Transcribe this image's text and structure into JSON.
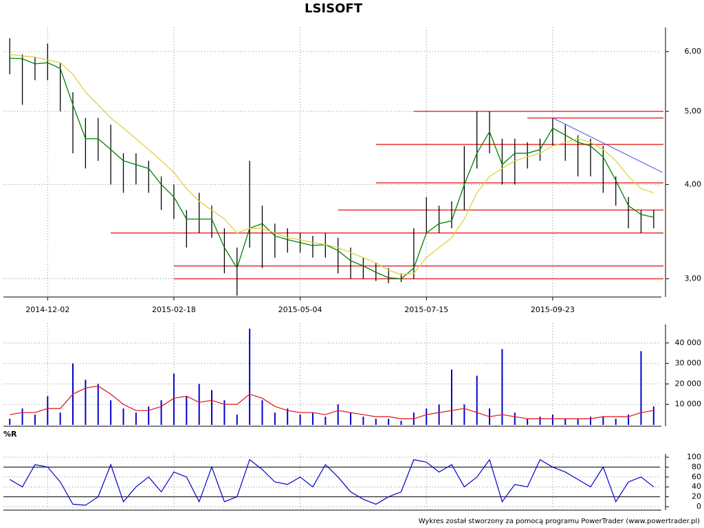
{
  "title": "LSISOFT",
  "footer": "Wykres został stworzony za pomocą programu PowerTrader (www.powertrader.pl)",
  "chart_data": [
    {
      "type": "hilo",
      "log_scale": true,
      "grid": true,
      "color": "#000000",
      "categories": [
        null,
        null,
        null,
        "2014-12-02",
        null,
        null,
        null,
        null,
        null,
        null,
        null,
        null,
        null,
        "2015-02-18",
        null,
        null,
        null,
        null,
        null,
        null,
        null,
        null,
        null,
        "2015-05-04",
        null,
        null,
        null,
        null,
        null,
        null,
        null,
        null,
        null,
        "2015-07-15",
        null,
        null,
        null,
        null,
        null,
        null,
        null,
        null,
        null,
        "2015-09-23",
        null,
        null,
        null,
        null,
        null,
        null,
        null,
        null
      ],
      "high": [
        6.25,
        5.95,
        5.9,
        6.15,
        5.8,
        5.3,
        4.9,
        4.9,
        4.8,
        4.4,
        4.4,
        4.3,
        4.1,
        4.0,
        3.7,
        3.9,
        3.75,
        3.5,
        3.3,
        4.3,
        3.75,
        3.55,
        3.5,
        3.45,
        3.42,
        3.45,
        3.4,
        3.3,
        3.2,
        3.15,
        3.1,
        3.05,
        3.5,
        3.85,
        3.75,
        3.8,
        4.5,
        5.0,
        5.0,
        4.6,
        4.6,
        4.55,
        4.6,
        4.9,
        4.8,
        4.65,
        4.6,
        4.5,
        4.1,
        3.85,
        3.7,
        3.7
      ],
      "low": [
        5.6,
        5.1,
        5.5,
        5.5,
        5.0,
        4.4,
        4.2,
        4.3,
        4.0,
        3.9,
        4.0,
        3.9,
        3.7,
        3.6,
        3.3,
        3.45,
        3.4,
        3.05,
        2.85,
        3.3,
        3.1,
        3.2,
        3.25,
        3.25,
        3.2,
        3.2,
        3.05,
        3.0,
        3.0,
        2.98,
        2.96,
        2.97,
        3.0,
        3.45,
        3.45,
        3.5,
        3.7,
        4.2,
        4.4,
        4.0,
        4.0,
        4.2,
        4.3,
        4.5,
        4.3,
        4.1,
        4.1,
        3.9,
        3.75,
        3.5,
        3.45,
        3.5
      ],
      "lines": [
        {
          "color": "#008000",
          "values": [
            5.88,
            5.87,
            5.78,
            5.8,
            5.7,
            5.1,
            4.6,
            4.6,
            4.45,
            4.3,
            4.25,
            4.2,
            4.0,
            3.85,
            3.6,
            3.6,
            3.6,
            3.3,
            3.1,
            3.5,
            3.55,
            3.42,
            3.38,
            3.35,
            3.32,
            3.33,
            3.27,
            3.17,
            3.12,
            3.06,
            3.01,
            3.0,
            3.1,
            3.45,
            3.55,
            3.58,
            4.0,
            4.4,
            4.7,
            4.25,
            4.4,
            4.4,
            4.45,
            4.75,
            4.65,
            4.55,
            4.5,
            4.35,
            4.05,
            3.75,
            3.65,
            3.62
          ]
        },
        {
          "color": "#e0d040",
          "values": [
            5.95,
            5.92,
            5.9,
            5.85,
            5.8,
            5.6,
            5.3,
            5.1,
            4.9,
            4.75,
            4.6,
            4.45,
            4.3,
            4.15,
            3.95,
            3.8,
            3.7,
            3.6,
            3.45,
            3.5,
            3.5,
            3.45,
            3.4,
            3.38,
            3.35,
            3.33,
            3.3,
            3.25,
            3.2,
            3.15,
            3.08,
            3.04,
            3.05,
            3.2,
            3.3,
            3.4,
            3.6,
            3.9,
            4.1,
            4.2,
            4.3,
            4.35,
            4.4,
            4.5,
            4.55,
            4.6,
            4.55,
            4.45,
            4.3,
            4.1,
            3.95,
            3.9
          ]
        }
      ],
      "levels": [
        {
          "y": 5.0,
          "from": 32
        },
        {
          "y": 4.9,
          "from": 41
        },
        {
          "y": 4.52,
          "from": 29
        },
        {
          "y": 4.02,
          "from": 29
        },
        {
          "y": 3.7,
          "from": 26
        },
        {
          "y": 3.45,
          "from": 8
        },
        {
          "y": 3.12,
          "from": 13
        },
        {
          "y": 3.0,
          "from": 13
        }
      ],
      "levels_color": "#e83030",
      "trend": {
        "x": [
          43,
          51.7
        ],
        "y": [
          4.9,
          4.15
        ],
        "color": "#4050e0"
      },
      "ylim": [
        2.85,
        6.39
      ],
      "yticks": [
        {
          "value": 3,
          "label": "3,00"
        },
        {
          "value": 4,
          "label": "4,00"
        },
        {
          "value": 5,
          "label": "5,00"
        },
        {
          "value": 6,
          "label": "6,00"
        }
      ]
    },
    {
      "type": "bar",
      "grid": true,
      "color": "#0000cc",
      "values": [
        3000,
        8000,
        5000,
        14000,
        6000,
        30000,
        22000,
        20000,
        12000,
        8000,
        6000,
        9000,
        12000,
        25000,
        14000,
        20000,
        17000,
        12000,
        5000,
        47000,
        12000,
        6000,
        8000,
        5000,
        6000,
        4000,
        10000,
        6000,
        4000,
        3000,
        3000,
        2000,
        6000,
        8000,
        10000,
        27000,
        10000,
        24000,
        8000,
        37000,
        6000,
        3000,
        4000,
        5000,
        3000,
        3000,
        4000,
        4000,
        3000,
        5000,
        36000,
        9000
      ],
      "average": {
        "color": "#e02020",
        "values": [
          5000,
          6000,
          6000,
          8000,
          8000,
          15000,
          18000,
          19000,
          15000,
          10000,
          7000,
          7000,
          9000,
          13000,
          14000,
          11000,
          12000,
          10000,
          10000,
          15000,
          13000,
          9000,
          7000,
          6000,
          6000,
          5000,
          7000,
          6000,
          5000,
          4000,
          4000,
          3000,
          3000,
          5000,
          6000,
          7000,
          8000,
          6000,
          4000,
          5000,
          4000,
          3000,
          3000,
          3000,
          3000,
          3000,
          3000,
          4000,
          4000,
          4000,
          6000,
          7000
        ]
      },
      "ylim": [
        0,
        48000
      ],
      "yticks": [
        {
          "value": 10000,
          "label": "10 000"
        },
        {
          "value": 20000,
          "label": "20 000"
        },
        {
          "value": 30000,
          "label": "30 000"
        },
        {
          "value": 40000,
          "label": "40 000"
        }
      ]
    },
    {
      "type": "line",
      "title": "%R",
      "grid": true,
      "color": "#0000cc",
      "values": [
        55,
        40,
        85,
        80,
        50,
        5,
        3,
        20,
        85,
        10,
        40,
        60,
        30,
        70,
        60,
        10,
        80,
        10,
        20,
        95,
        75,
        50,
        45,
        60,
        40,
        85,
        60,
        30,
        15,
        5,
        20,
        30,
        95,
        90,
        70,
        85,
        40,
        60,
        95,
        10,
        45,
        40,
        95,
        80,
        70,
        55,
        40,
        80,
        10,
        50,
        60,
        40
      ],
      "levels": [
        20,
        80
      ],
      "ylim": [
        0,
        100
      ],
      "yticks": [
        0,
        20,
        40,
        60,
        80,
        100
      ]
    }
  ]
}
